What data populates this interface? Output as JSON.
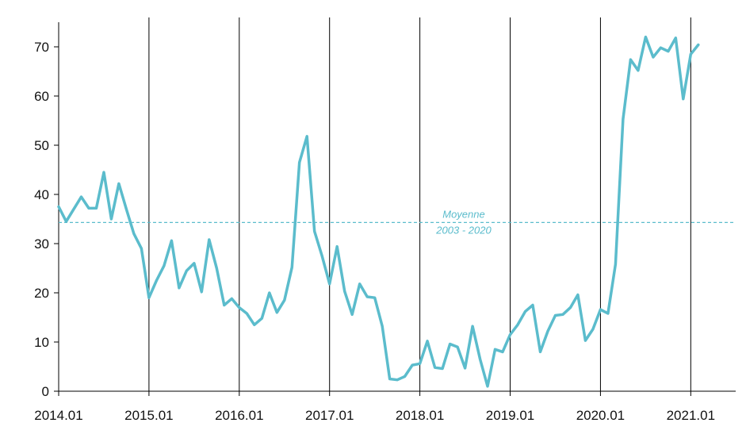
{
  "chart_data": {
    "type": "line",
    "title": "",
    "xlabel": "",
    "ylabel": "",
    "ylim": [
      0,
      75
    ],
    "yticks": [
      0,
      10,
      20,
      30,
      40,
      50,
      60,
      70
    ],
    "xticks": [
      "2014.01",
      "2015.01",
      "2016.01",
      "2017.01",
      "2018.01",
      "2019.01",
      "2020.01",
      "2021.01"
    ],
    "grid": "vertical lines at each year",
    "legend": "none",
    "colors": {
      "line": "#5bbccc",
      "grid": "#000000",
      "reference": "#5bbccc"
    },
    "series": [
      {
        "x": [
          "2014.01",
          "2014.02",
          "2014.03",
          "2014.04",
          "2014.05",
          "2014.06",
          "2014.07",
          "2014.08",
          "2014.09",
          "2014.10",
          "2014.11",
          "2014.12",
          "2015.01",
          "2015.02",
          "2015.03",
          "2015.04",
          "2015.05",
          "2015.06",
          "2015.07",
          "2015.08",
          "2015.09",
          "2015.10",
          "2015.11",
          "2015.12",
          "2016.01",
          "2016.02",
          "2016.03",
          "2016.04",
          "2016.05",
          "2016.06",
          "2016.07",
          "2016.08",
          "2016.09",
          "2016.10",
          "2016.11",
          "2016.12",
          "2017.01",
          "2017.02",
          "2017.03",
          "2017.04",
          "2017.05",
          "2017.06",
          "2017.07",
          "2017.08",
          "2017.09",
          "2017.10",
          "2017.11",
          "2017.12",
          "2018.01",
          "2018.02",
          "2018.03",
          "2018.04",
          "2018.05",
          "2018.06",
          "2018.07",
          "2018.08",
          "2018.09",
          "2018.10",
          "2018.11",
          "2018.12",
          "2019.01",
          "2019.02",
          "2019.03",
          "2019.04",
          "2019.05",
          "2019.06",
          "2019.07",
          "2019.08",
          "2019.09",
          "2019.10",
          "2019.11",
          "2019.12",
          "2020.01",
          "2020.02",
          "2020.03",
          "2020.04",
          "2020.05",
          "2020.06",
          "2020.07",
          "2020.08",
          "2020.09",
          "2020.10",
          "2020.11",
          "2020.12",
          "2021.01",
          "2021.02"
        ],
        "values": [
          37.5,
          34.5,
          37.0,
          39.5,
          37.2,
          37.2,
          44.5,
          35.0,
          42.2,
          37.0,
          32.0,
          29.0,
          19.0,
          22.5,
          25.5,
          30.6,
          21.0,
          24.5,
          26.0,
          20.2,
          30.8,
          25.0,
          17.5,
          18.8,
          17.0,
          15.8,
          13.5,
          14.8,
          20.0,
          16.0,
          18.5,
          25.2,
          46.5,
          51.8,
          32.5,
          27.5,
          21.8,
          29.4,
          20.3,
          15.6,
          21.8,
          19.2,
          19.0,
          13.2,
          2.5,
          2.3,
          3.0,
          5.3,
          5.6,
          10.2,
          4.8,
          4.6,
          9.6,
          9.0,
          4.7,
          13.2,
          6.5,
          1.0,
          8.5,
          8.0,
          11.5,
          13.5,
          16.2,
          17.5,
          8.0,
          12.2,
          15.4,
          15.6,
          17.0,
          19.6,
          10.3,
          12.6,
          16.6,
          15.8,
          25.8,
          55.3,
          67.4,
          65.2,
          72.0,
          67.9,
          69.8,
          69.1,
          71.8,
          59.4,
          68.5,
          70.4
        ]
      }
    ],
    "reference_line": {
      "value": 34.3,
      "label_line1": "Moyenne",
      "label_line2": "2003 - 2020"
    }
  }
}
